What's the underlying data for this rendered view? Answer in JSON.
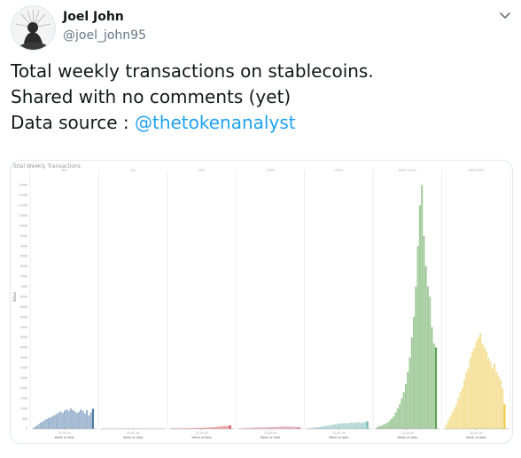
{
  "tweet": {
    "author_name": "Joel John",
    "author_handle": "@joel_john95",
    "text_lines": [
      "Total weekly transactions on stablecoins.",
      "Shared with no comments (yet)"
    ],
    "source_prefix": "Data source : ",
    "mention": "@thetokenanalyst"
  },
  "icons": {
    "avatar": "avatar-image",
    "caret": "chevron-down-icon"
  },
  "chart_data": {
    "type": "bar",
    "title": "Total Weekly Transactions",
    "ylabel": "Value",
    "ylim": [
      0,
      1250000
    ],
    "yticks": [
      "0",
      "50K",
      "100K",
      "150K",
      "200K",
      "250K",
      "300K",
      "350K",
      "400K",
      "450K",
      "500K",
      "550K",
      "600K",
      "650K",
      "700K",
      "750K",
      "800K",
      "850K",
      "900K",
      "950K",
      "1000K",
      "1050K",
      "1100K",
      "1150K",
      "1200K"
    ],
    "xlabel_each_panel": "Week of date",
    "date_label_each_panel": "22 Jul 19",
    "series": [
      {
        "name": "DAI",
        "color": "#4e79a7",
        "values": [
          8000,
          15000,
          22000,
          30000,
          35000,
          42000,
          48000,
          52000,
          56000,
          62000,
          68000,
          72000,
          80000,
          85000,
          78000,
          90000,
          95000,
          88000,
          100000,
          92000,
          85000,
          78000,
          82000,
          95000,
          88000,
          75000,
          92000,
          65000,
          80000,
          98000
        ]
      },
      {
        "name": "SAI",
        "color": "#bbbbbb",
        "values": [
          0,
          0,
          0,
          0,
          0,
          0,
          0,
          0,
          0,
          0,
          0,
          0,
          0,
          0,
          0,
          0,
          0,
          0,
          0,
          0,
          0,
          0,
          0,
          0,
          0,
          0,
          0,
          0,
          0,
          0
        ]
      },
      {
        "name": "PAX",
        "color": "#e15759",
        "values": [
          500,
          800,
          1000,
          1200,
          1500,
          2000,
          2500,
          3000,
          2800,
          3200,
          4000,
          3500,
          3800,
          4500,
          5000,
          4200,
          6000,
          5500,
          7000,
          6500,
          8000,
          7500,
          9000,
          10000,
          12000,
          11000,
          14000,
          13000,
          15000,
          16000
        ]
      },
      {
        "name": "TUSD",
        "color": "#d37295",
        "values": [
          1000,
          2000,
          3000,
          3500,
          4000,
          4200,
          5000,
          5500,
          6000,
          6500,
          7000,
          6800,
          7200,
          7500,
          8000,
          8500,
          9000,
          8800,
          9500,
          10000,
          11000,
          10500,
          11500,
          12000,
          11000,
          10000,
          9500,
          10500,
          9000,
          8500
        ]
      },
      {
        "name": "USDC",
        "color": "#76b7b2",
        "values": [
          2000,
          3000,
          5000,
          6000,
          7000,
          8000,
          10000,
          12000,
          14000,
          15000,
          16000,
          18000,
          20000,
          22000,
          24000,
          25000,
          26000,
          28000,
          27000,
          26000,
          28000,
          30000,
          29000,
          31000,
          30000,
          32000,
          28000,
          30000,
          34000,
          36000
        ]
      },
      {
        "name": "USDT-Omni",
        "color": "#59a14f",
        "values": [
          10000,
          12000,
          15000,
          20000,
          25000,
          30000,
          40000,
          50000,
          60000,
          80000,
          100000,
          120000,
          150000,
          180000,
          220000,
          280000,
          350000,
          450000,
          550000,
          700000,
          900000,
          1100000,
          1200000,
          950000,
          800000,
          700000,
          650000,
          500000,
          420000,
          400000
        ]
      },
      {
        "name": "USDT-ERC",
        "color": "#edc948",
        "values": [
          20000,
          40000,
          60000,
          80000,
          100000,
          120000,
          150000,
          180000,
          200000,
          240000,
          280000,
          300000,
          350000,
          380000,
          400000,
          430000,
          450000,
          470000,
          420000,
          400000,
          380000,
          350000,
          330000,
          300000,
          320000,
          280000,
          260000,
          240000,
          200000,
          120000
        ]
      }
    ],
    "grid": false,
    "legend": "none"
  }
}
